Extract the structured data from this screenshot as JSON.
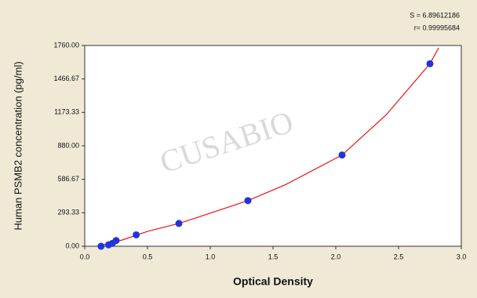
{
  "chart_data": {
    "type": "scatter",
    "x_label": "Optical Density",
    "y_label": "Human  PSMB2 concentration (pg/ml)",
    "annotations": [
      "S = 6.89612186",
      "r= 0.99995684"
    ],
    "watermark": "CUSABIO",
    "points": {
      "color": "#2233dd",
      "x": [
        0.13,
        0.19,
        0.22,
        0.25,
        0.41,
        0.75,
        1.3,
        2.05,
        2.75
      ],
      "values": [
        0,
        12.5,
        25,
        50,
        100,
        200,
        400,
        800,
        1600
      ]
    },
    "curve": {
      "color": "#ee1111",
      "x": [
        0.1,
        0.3,
        0.5,
        0.75,
        1.0,
        1.3,
        1.6,
        2.05,
        2.4,
        2.75,
        2.82
      ],
      "values": [
        0,
        55,
        130,
        200,
        290,
        400,
        540,
        800,
        1150,
        1600,
        1740
      ]
    },
    "xlim": [
      0,
      3
    ],
    "ylim": [
      0,
      1760
    ],
    "xticks": [
      {
        "value": 0,
        "label": "0.0"
      },
      0.5,
      {
        "value": 1,
        "label": "1.0"
      },
      1.5,
      {
        "value": 2,
        "label": "2.0"
      },
      2.5,
      {
        "value": 3,
        "label": "3.0"
      }
    ],
    "yticks": [
      {
        "value": 0,
        "label": "0.00"
      },
      {
        "value": 293.33,
        "label": "293.33"
      },
      {
        "value": 586.67,
        "label": "586.67"
      },
      {
        "value": 880,
        "label": "880.00"
      },
      {
        "value": 1173.33,
        "label": "1173.33"
      },
      {
        "value": 1466.67,
        "label": "1466.67"
      },
      {
        "value": 1760,
        "label": "1760.00"
      }
    ]
  }
}
